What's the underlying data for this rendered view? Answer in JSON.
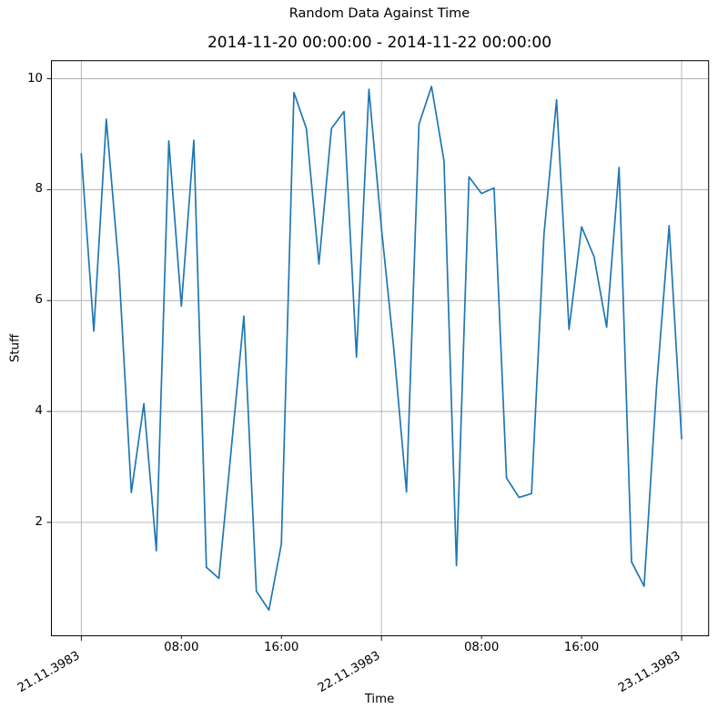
{
  "figure": {
    "title": "Random Data Against Time",
    "background": "#ffffff"
  },
  "axes": {
    "subtitle": "2014-11-20 00:00:00 - 2014-11-22 00:00:00",
    "xlabel": "Time",
    "ylabel": "Stuff"
  },
  "chart_data": {
    "type": "line",
    "title": "Random Data Against Time",
    "subtitle": "2014-11-20 00:00:00 - 2014-11-22 00:00:00",
    "xlabel": "Time",
    "ylabel": "Stuff",
    "x_unit": "hours after first sample (hourly samples over 2 days)",
    "x": [
      0,
      1,
      2,
      3,
      4,
      5,
      6,
      7,
      8,
      9,
      10,
      11,
      12,
      13,
      14,
      15,
      16,
      17,
      18,
      19,
      20,
      21,
      22,
      23,
      24,
      25,
      26,
      27,
      28,
      29,
      30,
      31,
      32,
      33,
      34,
      35,
      36,
      37,
      38,
      39,
      40,
      41,
      42,
      43,
      44,
      45,
      46,
      47,
      48
    ],
    "values": [
      8.65,
      5.45,
      9.27,
      6.6,
      2.54,
      4.14,
      1.49,
      8.88,
      5.9,
      8.89,
      1.19,
      0.99,
      3.35,
      5.72,
      0.76,
      0.42,
      1.61,
      9.75,
      9.1,
      6.66,
      9.1,
      9.41,
      4.98,
      9.81,
      7.3,
      5.1,
      2.55,
      9.18,
      9.86,
      8.52,
      1.22,
      8.23,
      7.93,
      8.03,
      2.8,
      2.45,
      2.52,
      7.2,
      9.62,
      5.48,
      7.33,
      6.79,
      5.52,
      8.4,
      1.29,
      0.85,
      4.45,
      7.35,
      3.51
    ],
    "xlim": [
      -2.39,
      50.16
    ],
    "ylim": [
      -0.045,
      10.325
    ],
    "grid": "y-major and x-date-major only",
    "legend": "none",
    "line_color": "#1f77b4",
    "grid_color": "#b0b0b0",
    "spine_color": "#000000",
    "x_major_ticks": [
      {
        "h": 0,
        "label": "21.11.3983"
      },
      {
        "h": 24,
        "label": "22.11.3983"
      },
      {
        "h": 48,
        "label": "23.11.3983"
      }
    ],
    "x_minor_ticks": [
      {
        "h": 8,
        "label": "08:00"
      },
      {
        "h": 16,
        "label": "16:00"
      },
      {
        "h": 32,
        "label": "08:00"
      },
      {
        "h": 40,
        "label": "16:00"
      }
    ],
    "y_ticks": [
      2,
      4,
      6,
      8,
      10
    ]
  }
}
